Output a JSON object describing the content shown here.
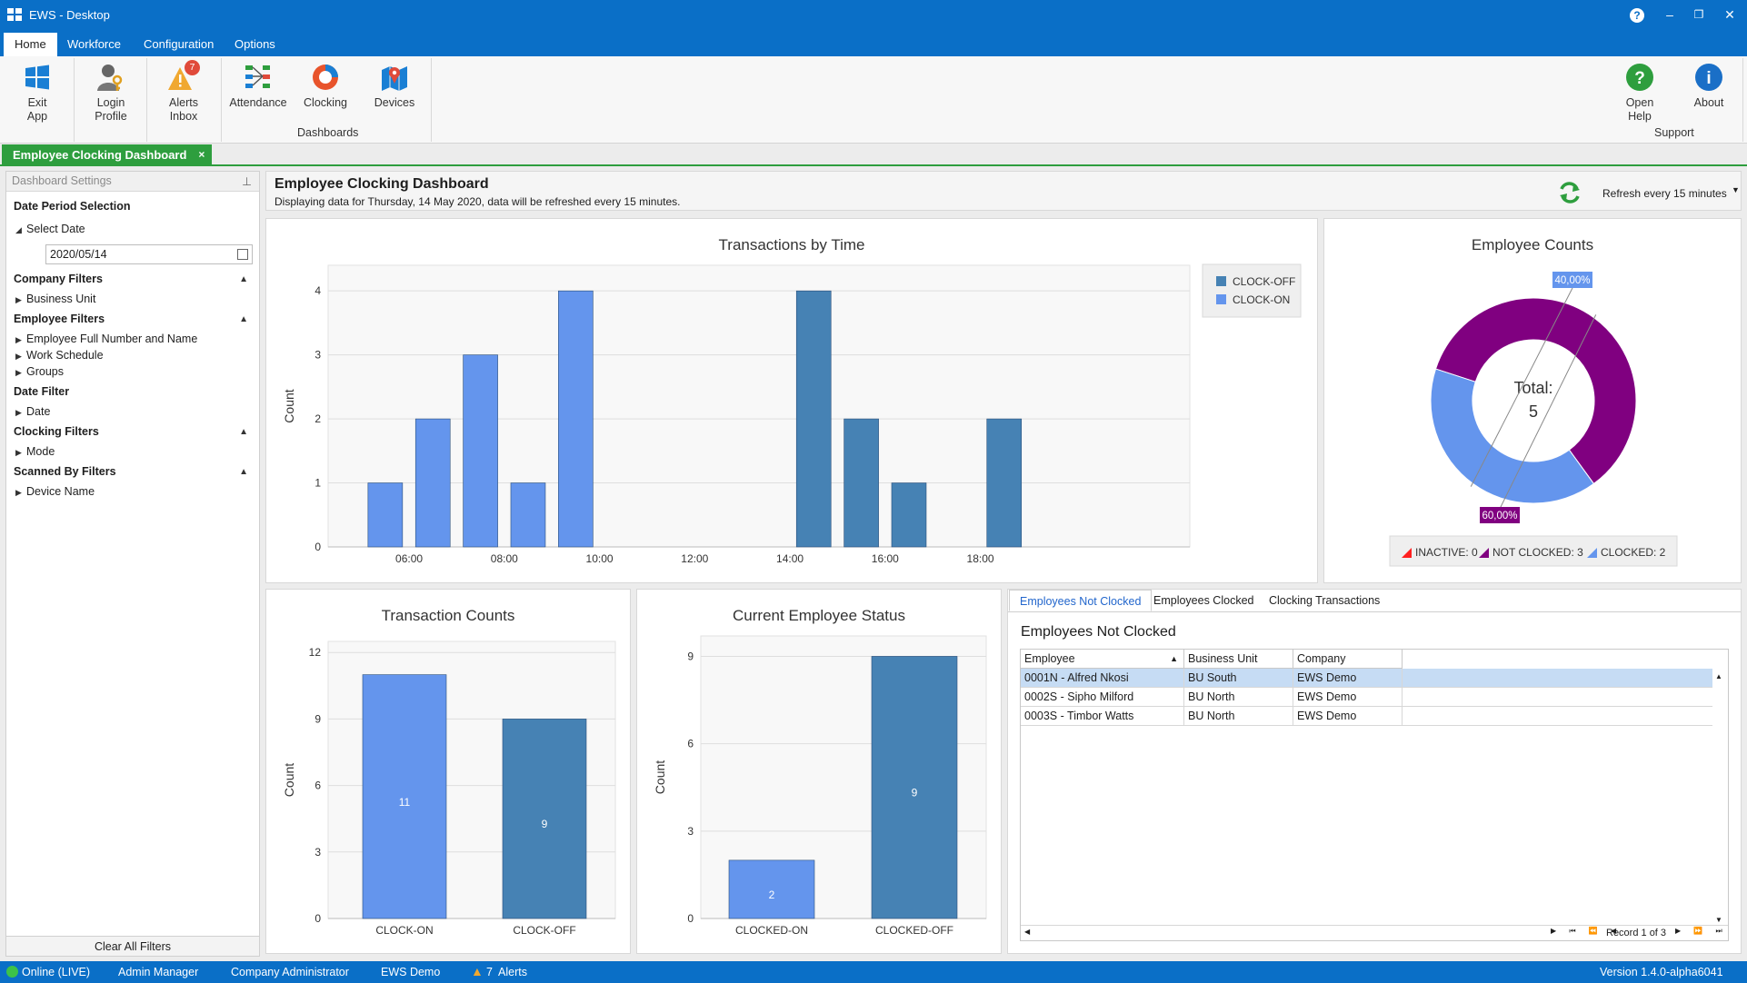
{
  "window": {
    "title": "EWS - Desktop",
    "help_glyph": "?",
    "min_glyph": "‒",
    "max_glyph": "❐",
    "close_glyph": "✕"
  },
  "menu": {
    "tabs": [
      "Home",
      "Workforce",
      "Configuration",
      "Options"
    ]
  },
  "ribbon": {
    "exit_label": "Exit\nApp",
    "login_label": "Login\nProfile",
    "alerts_label": "Alerts\nInbox",
    "alerts_badge": "7",
    "attendance_label": "Attendance",
    "clocking_label": "Clocking",
    "devices_label": "Devices",
    "dashboards_group": "Dashboards",
    "help_label": "Open\nHelp",
    "about_label": "About",
    "support_group": "Support"
  },
  "doc_tab": {
    "label": "Employee Clocking Dashboard",
    "close": "×"
  },
  "left_panel": {
    "header": "Dashboard Settings",
    "date_period": "Date Period Selection",
    "select_date": "Select Date",
    "date_value": "2020/05/14",
    "company_filters": "Company Filters",
    "business_unit": "Business Unit",
    "employee_filters": "Employee Filters",
    "employee_full": "Employee Full Number and Name",
    "work_schedule": "Work Schedule",
    "groups": "Groups",
    "date_filter": "Date Filter",
    "date": "Date",
    "clocking_filters": "Clocking Filters",
    "mode": "Mode",
    "scanned_by": "Scanned By Filters",
    "device_name": "Device Name",
    "clear_all": "Clear All Filters"
  },
  "header": {
    "title": "Employee Clocking Dashboard",
    "subtitle": "Displaying data for Thursday, 14 May 2020, data will be refreshed every 15 minutes.",
    "refresh": "Refresh every 15 minutes"
  },
  "chart_data": [
    {
      "type": "bar",
      "title": "Transactions by Time",
      "ylabel": "Count",
      "ylim": [
        0,
        4.4
      ],
      "yticks": [
        "0",
        "1",
        "2",
        "3",
        "4"
      ],
      "x_tick_labels": [
        "06:00",
        "08:00",
        "10:00",
        "12:00",
        "14:00",
        "16:00",
        "18:00"
      ],
      "series": [
        {
          "name": "CLOCK-OFF",
          "color": "#4682b4",
          "x": [
            14,
            15,
            16,
            18
          ],
          "values": [
            4,
            2,
            1,
            2
          ]
        },
        {
          "name": "CLOCK-ON",
          "color": "#6495ed",
          "x": [
            5,
            6,
            7,
            8,
            9
          ],
          "values": [
            1,
            2,
            3,
            1,
            4
          ]
        }
      ],
      "legend": "top-right"
    },
    {
      "type": "pie",
      "title": "Employee Counts",
      "center_label": "Total:",
      "center_value": "5",
      "slices": [
        {
          "name": "INACTIVE",
          "value": 0,
          "color": "#ff2020"
        },
        {
          "name": "NOT CLOCKED",
          "value": 3,
          "color": "#800080",
          "label": "60,00%"
        },
        {
          "name": "CLOCKED",
          "value": 2,
          "color": "#6495ed",
          "label": "40,00%"
        }
      ],
      "legend_labels": [
        "INACTIVE: 0",
        "NOT CLOCKED: 3",
        "CLOCKED: 2"
      ],
      "legend": "bottom"
    },
    {
      "type": "bar",
      "title": "Transaction Counts",
      "ylabel": "Count",
      "ylim": [
        0,
        12.5
      ],
      "yticks": [
        "0",
        "3",
        "6",
        "9",
        "12"
      ],
      "categories": [
        "CLOCK-ON",
        "CLOCK-OFF"
      ],
      "values": [
        11,
        9
      ],
      "data_labels": [
        "11",
        "9"
      ],
      "colors": [
        "#6495ed",
        "#4682b4"
      ]
    },
    {
      "type": "bar",
      "title": "Current Employee Status",
      "ylabel": "Count",
      "ylim": [
        0,
        9.7
      ],
      "yticks": [
        "0",
        "3",
        "6",
        "9"
      ],
      "categories": [
        "CLOCKED-ON",
        "CLOCKED-OFF"
      ],
      "values": [
        2,
        9
      ],
      "data_labels": [
        "2",
        "9"
      ],
      "colors": [
        "#6495ed",
        "#4682b4"
      ]
    }
  ],
  "grid": {
    "tabs": [
      "Employees Not Clocked",
      "Employees Clocked",
      "Clocking Transactions"
    ],
    "title": "Employees Not Clocked",
    "columns": [
      "Employee",
      "Business Unit",
      "Company"
    ],
    "rows": [
      [
        "0001N - Alfred Nkosi",
        "BU South",
        "EWS Demo"
      ],
      [
        "0002S - Sipho Milford",
        "BU North",
        "EWS Demo"
      ],
      [
        "0003S - Timbor Watts",
        "BU North",
        "EWS Demo"
      ]
    ],
    "record_text": "Record 1 of 3"
  },
  "status": {
    "online": "Online (LIVE)",
    "user": "Admin Manager",
    "role": "Company Administrator",
    "company": "EWS Demo",
    "alerts_count": "7",
    "alerts_label": "Alerts",
    "version": "Version 1.4.0-alpha6041"
  }
}
